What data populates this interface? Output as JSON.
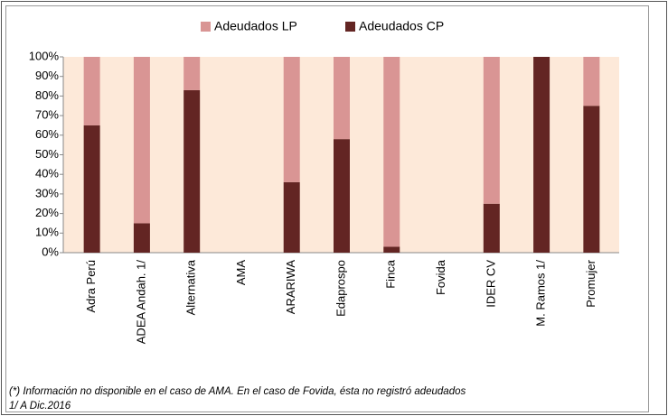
{
  "chart_data": {
    "type": "stacked_bar",
    "categories": [
      "Adra Perú",
      "ADEA Andah. 1/",
      "Alternativa",
      "AMA",
      "ARARIWA",
      "Edaprospo",
      "Finca",
      "Fovida",
      "IDER CV",
      "M. Ramos 1/",
      "Promujer"
    ],
    "series": [
      {
        "name": "Adeudados CP",
        "color": "#632523",
        "values": [
          65,
          15,
          83,
          null,
          36,
          58,
          3,
          null,
          25,
          100,
          75
        ]
      },
      {
        "name": "Adeudados LP",
        "color": "#d99594",
        "values": [
          35,
          85,
          17,
          null,
          64,
          42,
          97,
          null,
          75,
          0,
          25
        ]
      }
    ],
    "legend_order": [
      1,
      0
    ],
    "ylim": [
      0,
      100
    ],
    "yticks": [
      {
        "value": 0,
        "label": "0%"
      },
      {
        "value": 10,
        "label": "10%"
      },
      {
        "value": 20,
        "label": "20%"
      },
      {
        "value": 30,
        "label": "30%"
      },
      {
        "value": 40,
        "label": "40%"
      },
      {
        "value": 50,
        "label": "50%"
      },
      {
        "value": 60,
        "label": "60%"
      },
      {
        "value": 70,
        "label": "70%"
      },
      {
        "value": 80,
        "label": "80%"
      },
      {
        "value": 90,
        "label": "90%"
      },
      {
        "value": 100,
        "label": "100%"
      }
    ],
    "plot_background": "#fde9d9",
    "notes": [
      "(*) Información no disponible en el caso de AMA. En el caso de Fovida, ésta  no registró adeudados",
      "1/ A Dic.2016"
    ]
  }
}
